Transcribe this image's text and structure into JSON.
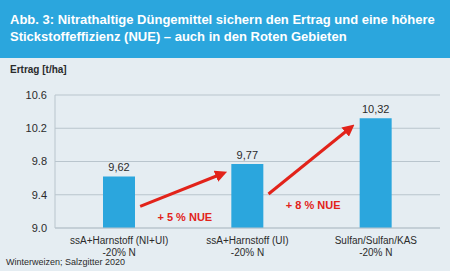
{
  "chart_data": {
    "type": "bar",
    "title": "Abb. 3: Nitrathaltige Düngemittel sichern den Ertrag und eine höhere Stickstoffeffizienz (NUE) – auch in den Roten Gebieten",
    "y_label": "Ertrag [t/ha]",
    "categories": [
      "ssA+Harnstoff (NI+UI)\n-20% N",
      "ssA+Harnstoff (UI)\n-20% N",
      "Sulfan/Sulfan/KAS\n-20% N"
    ],
    "values": [
      9.62,
      9.77,
      10.32
    ],
    "value_labels": [
      "9,62",
      "9,77",
      "10,32"
    ],
    "data_labels": true,
    "color": "#2ba6dd",
    "ylim": [
      9.0,
      10.6
    ],
    "yticks": [
      {
        "value": 9.0,
        "label": "9.0"
      },
      {
        "value": 9.4,
        "label": "9.4"
      },
      {
        "value": 9.8,
        "label": "9.8"
      },
      {
        "value": 10.2,
        "label": "10.2"
      },
      {
        "value": 10.6,
        "label": "10.6"
      }
    ],
    "grid": true,
    "annotations": [
      "+ 5 % NUE",
      "+ 8 % NUE"
    ],
    "footnote": "Winterweizen; Salzgitter 2020"
  }
}
